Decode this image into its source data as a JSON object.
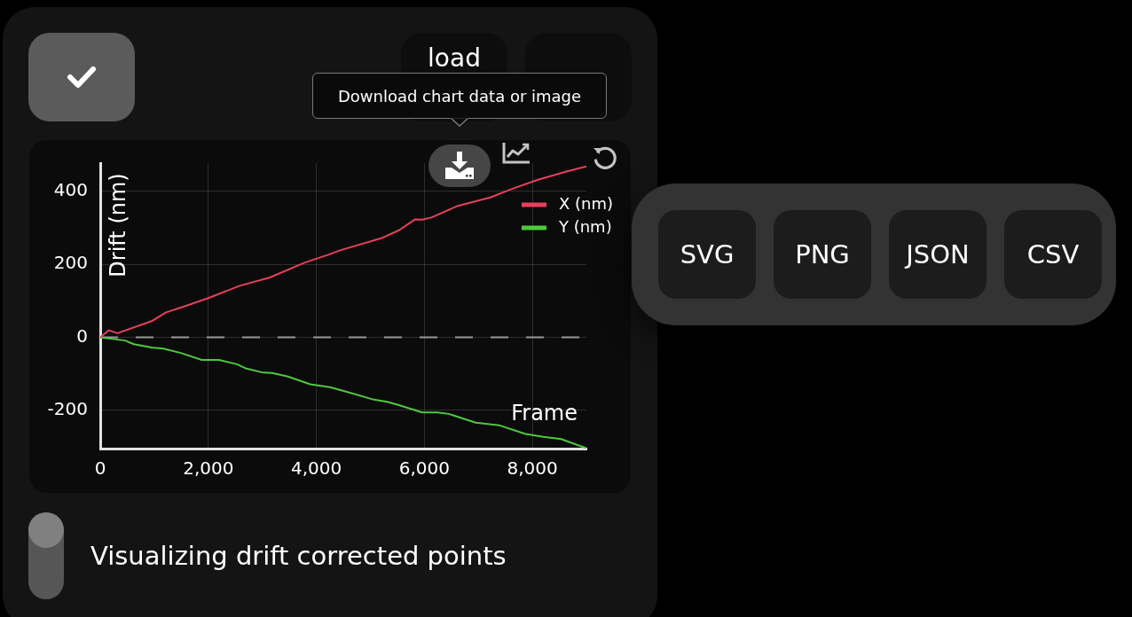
{
  "chart_data": {
    "type": "line",
    "xlabel": "Frame",
    "ylabel": "Drift (nm)",
    "annotations": [
      "Download chart data or image",
      "load",
      "SVG",
      "PNG",
      "JSON",
      "CSV",
      "Visualizing drift corrected points"
    ],
    "series": [
      {
        "name": "X (nm)",
        "color": "#e6405d",
        "x": [
          0,
          160,
          320,
          950,
          1220,
          1550,
          1980,
          2580,
          3130,
          3780,
          4220,
          4440,
          5200,
          5530,
          5830,
          5960,
          6130,
          6620,
          7220,
          7600,
          8090,
          8630,
          9000
        ],
        "values": [
          0,
          19,
          11,
          44,
          68,
          84,
          106,
          141,
          163,
          204,
          226,
          238,
          271,
          293,
          323,
          322,
          328,
          360,
          383,
          405,
          431,
          454,
          468
        ]
      },
      {
        "name": "Y (nm)",
        "color": "#4fc83f",
        "x": [
          0,
          460,
          620,
          950,
          1170,
          1490,
          1880,
          2200,
          2530,
          2690,
          3020,
          3180,
          3460,
          3890,
          4250,
          4550,
          5040,
          5310,
          5530,
          5960,
          6240,
          6450,
          6950,
          7380,
          7870,
          8200,
          8530,
          9000
        ],
        "values": [
          0,
          -9,
          -19,
          -28,
          -31,
          -43,
          -62,
          -62,
          -74,
          -85,
          -97,
          -98,
          -107,
          -129,
          -137,
          -149,
          -170,
          -177,
          -186,
          -206,
          -206,
          -210,
          -234,
          -241,
          -265,
          -273,
          -279,
          -304
        ]
      }
    ],
    "xlim": [
      0,
      9000
    ],
    "xticks": [
      0,
      {
        "value": 2000,
        "label": "2,000"
      },
      {
        "value": 4000,
        "label": "4,000"
      },
      {
        "value": 6000,
        "label": "6,000"
      },
      {
        "value": 8000,
        "label": "8,000"
      }
    ],
    "ylim": [
      -305,
      477
    ],
    "yticks": [
      -200,
      0,
      200,
      400
    ],
    "grid": true,
    "legend": "top right",
    "ref_lines": [
      {
        "axis": "y",
        "value": 0,
        "color": "#9a9a9a",
        "line_style": "dashed"
      }
    ]
  }
}
